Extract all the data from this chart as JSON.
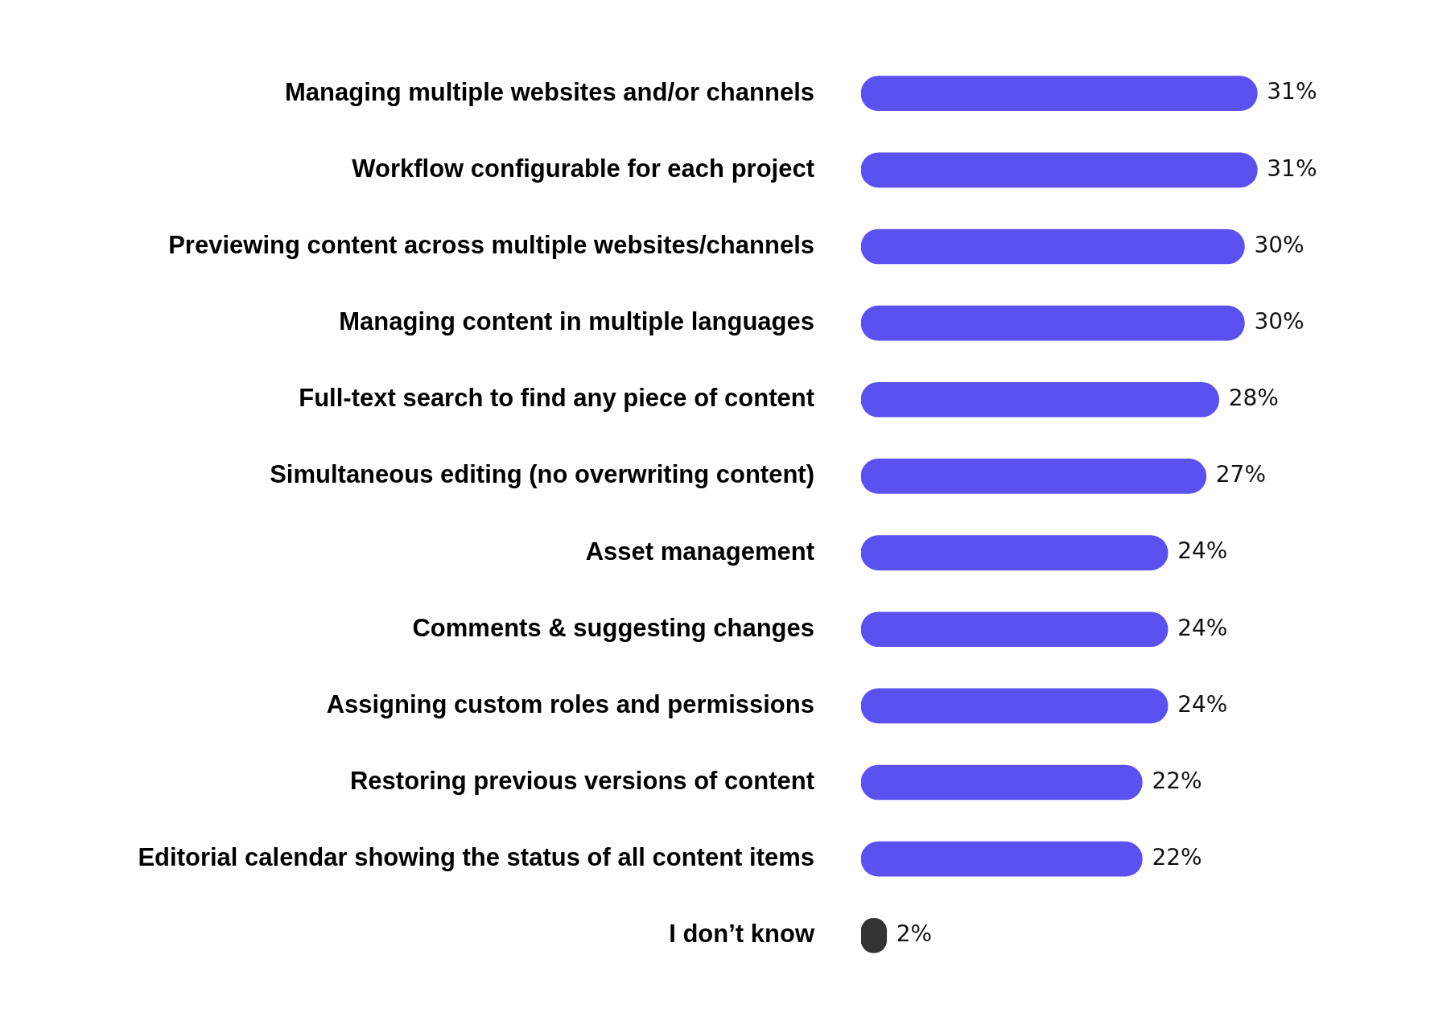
{
  "chart_data": {
    "type": "bar",
    "orientation": "horizontal",
    "categories": [
      "Managing multiple websites and/or channels",
      "Workflow configurable for each project",
      "Previewing content across multiple websites/channels",
      "Managing content in multiple languages",
      "Full-text search to find any piece of content",
      "Simultaneous editing (no overwriting content)",
      "Asset management",
      "Comments & suggesting changes",
      "Assigning custom roles and permissions",
      "Restoring previous versions of content",
      "Editorial calendar showing the status of all content items",
      "I don’t know"
    ],
    "values": [
      31,
      31,
      30,
      30,
      28,
      27,
      24,
      24,
      24,
      22,
      22,
      2
    ],
    "colors": [
      "#5b50f0",
      "#5b50f0",
      "#5b50f0",
      "#5b50f0",
      "#5b50f0",
      "#5b50f0",
      "#5b50f0",
      "#5b50f0",
      "#5b50f0",
      "#5b50f0",
      "#5b50f0",
      "#333333"
    ],
    "value_labels": [
      "31%",
      "31%",
      "30%",
      "30%",
      "28%",
      "27%",
      "24%",
      "24%",
      "24%",
      "22%",
      "22%",
      "2%"
    ],
    "grid": false,
    "legend": false
  }
}
